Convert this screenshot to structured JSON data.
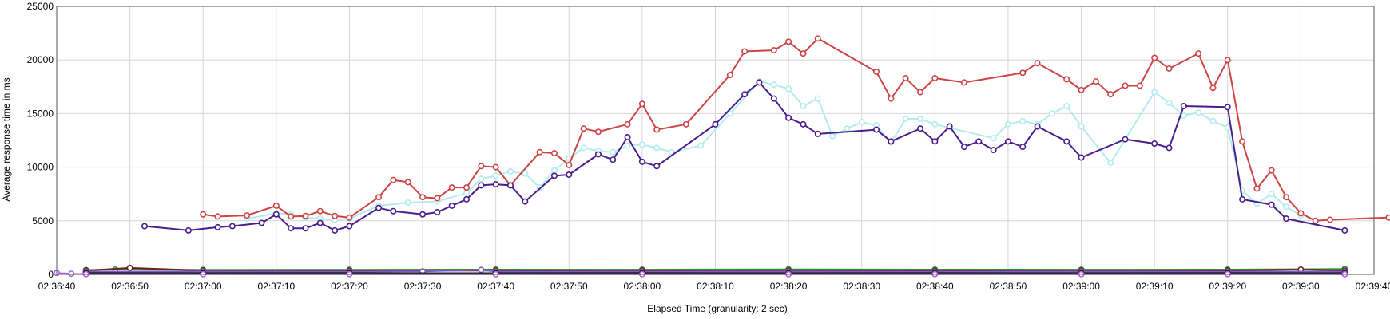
{
  "chart_data": {
    "type": "line",
    "xlabel": "Elapsed Time (granularity: 2 sec)",
    "ylabel": "Average response time in ms",
    "xlim": [
      "02:36:40",
      "02:39:40"
    ],
    "ylim": [
      0,
      25000
    ],
    "x_ticks": [
      "02:36:40",
      "02:36:50",
      "02:37:00",
      "02:37:10",
      "02:37:20",
      "02:37:30",
      "02:37:40",
      "02:37:50",
      "02:38:00",
      "02:38:10",
      "02:38:20",
      "02:38:30",
      "02:38:40",
      "02:38:50",
      "02:39:00",
      "02:39:10",
      "02:39:20",
      "02:39:30",
      "02:39:40"
    ],
    "y_ticks": [
      0,
      5000,
      10000,
      15000,
      20000,
      25000
    ],
    "grid": true,
    "series": [
      {
        "color": "#cc4444",
        "points": [
          [
            "02:37:00",
            5600
          ],
          [
            "02:37:02",
            5400
          ],
          [
            "02:37:06",
            5500
          ],
          [
            "02:37:10",
            6400
          ],
          [
            "02:37:12",
            5400
          ],
          [
            "02:37:14",
            5450
          ],
          [
            "02:37:16",
            5900
          ],
          [
            "02:37:18",
            5450
          ],
          [
            "02:37:20",
            5300
          ],
          [
            "02:37:24",
            7200
          ],
          [
            "02:37:26",
            8800
          ],
          [
            "02:37:28",
            8600
          ],
          [
            "02:37:30",
            7200
          ],
          [
            "02:37:32",
            7100
          ],
          [
            "02:37:34",
            8100
          ],
          [
            "02:37:36",
            8100
          ],
          [
            "02:37:38",
            10100
          ],
          [
            "02:37:40",
            10000
          ],
          [
            "02:37:42",
            8300
          ],
          [
            "02:37:46",
            11400
          ],
          [
            "02:37:48",
            11300
          ],
          [
            "02:37:50",
            10200
          ],
          [
            "02:37:52",
            13600
          ],
          [
            "02:37:54",
            13300
          ],
          [
            "02:37:58",
            14000
          ],
          [
            "02:38:00",
            15900
          ],
          [
            "02:38:02",
            13500
          ],
          [
            "02:38:06",
            14000
          ],
          [
            "02:38:12",
            18600
          ],
          [
            "02:38:14",
            20800
          ],
          [
            "02:38:18",
            20900
          ],
          [
            "02:38:20",
            21700
          ],
          [
            "02:38:22",
            20600
          ],
          [
            "02:38:24",
            22000
          ],
          [
            "02:38:32",
            18900
          ],
          [
            "02:38:34",
            16400
          ],
          [
            "02:38:36",
            18300
          ],
          [
            "02:38:38",
            17000
          ],
          [
            "02:38:40",
            18300
          ],
          [
            "02:38:44",
            17900
          ],
          [
            "02:38:52",
            18800
          ],
          [
            "02:38:54",
            19700
          ],
          [
            "02:38:58",
            18200
          ],
          [
            "02:39:00",
            17200
          ],
          [
            "02:39:02",
            18000
          ],
          [
            "02:39:04",
            16800
          ],
          [
            "02:39:06",
            17600
          ],
          [
            "02:39:08",
            17600
          ],
          [
            "02:39:10",
            20200
          ],
          [
            "02:39:12",
            19200
          ],
          [
            "02:39:16",
            20600
          ],
          [
            "02:39:18",
            17400
          ],
          [
            "02:39:20",
            20000
          ],
          [
            "02:39:22",
            12400
          ],
          [
            "02:39:24",
            8000
          ],
          [
            "02:39:26",
            9700
          ],
          [
            "02:39:28",
            7200
          ],
          [
            "02:39:30",
            5700
          ],
          [
            "02:39:32",
            5000
          ],
          [
            "02:39:34",
            5100
          ],
          [
            "02:39:42",
            5300
          ]
        ]
      },
      {
        "color": "#b3ecee",
        "points": [
          [
            "02:37:06",
            5200
          ],
          [
            "02:37:10",
            5700
          ],
          [
            "02:37:12",
            5600
          ],
          [
            "02:37:14",
            5300
          ],
          [
            "02:37:16",
            5200
          ],
          [
            "02:37:18",
            5100
          ],
          [
            "02:37:20",
            5200
          ],
          [
            "02:37:24",
            6400
          ],
          [
            "02:37:28",
            6700
          ],
          [
            "02:37:32",
            6800
          ],
          [
            "02:37:36",
            7600
          ],
          [
            "02:37:38",
            8900
          ],
          [
            "02:37:40",
            9200
          ],
          [
            "02:37:42",
            9600
          ],
          [
            "02:37:44",
            9400
          ],
          [
            "02:37:46",
            8100
          ],
          [
            "02:37:48",
            9700
          ],
          [
            "02:37:50",
            10800
          ],
          [
            "02:37:52",
            11800
          ],
          [
            "02:37:54",
            11500
          ],
          [
            "02:37:56",
            11400
          ],
          [
            "02:37:58",
            12000
          ],
          [
            "02:38:00",
            12100
          ],
          [
            "02:38:02",
            11800
          ],
          [
            "02:38:04",
            11400
          ],
          [
            "02:38:08",
            12000
          ],
          [
            "02:38:12",
            15000
          ],
          [
            "02:38:16",
            18000
          ],
          [
            "02:38:18",
            17700
          ],
          [
            "02:38:20",
            17300
          ],
          [
            "02:38:22",
            15700
          ],
          [
            "02:38:24",
            16400
          ],
          [
            "02:38:26",
            12900
          ],
          [
            "02:38:28",
            13600
          ],
          [
            "02:38:30",
            14200
          ],
          [
            "02:38:32",
            13900
          ],
          [
            "02:38:34",
            12300
          ],
          [
            "02:38:36",
            14500
          ],
          [
            "02:38:38",
            14500
          ],
          [
            "02:38:40",
            14000
          ],
          [
            "02:38:48",
            12700
          ],
          [
            "02:38:50",
            14000
          ],
          [
            "02:38:52",
            14300
          ],
          [
            "02:38:54",
            14000
          ],
          [
            "02:38:56",
            15000
          ],
          [
            "02:38:58",
            15700
          ],
          [
            "02:39:00",
            13800
          ],
          [
            "02:39:04",
            10400
          ],
          [
            "02:39:10",
            17000
          ],
          [
            "02:39:12",
            16000
          ],
          [
            "02:39:14",
            14800
          ],
          [
            "02:39:16",
            15100
          ],
          [
            "02:39:18",
            14300
          ],
          [
            "02:39:20",
            13700
          ],
          [
            "02:39:22",
            7800
          ],
          [
            "02:39:24",
            6600
          ],
          [
            "02:39:26",
            7500
          ],
          [
            "02:39:28",
            6300
          ],
          [
            "02:39:30",
            5500
          ]
        ]
      },
      {
        "color": "#4b1d8c",
        "points": [
          [
            "02:36:52",
            4500
          ],
          [
            "02:36:58",
            4100
          ],
          [
            "02:37:02",
            4400
          ],
          [
            "02:37:04",
            4500
          ],
          [
            "02:37:08",
            4800
          ],
          [
            "02:37:10",
            5600
          ],
          [
            "02:37:12",
            4300
          ],
          [
            "02:37:14",
            4300
          ],
          [
            "02:37:16",
            4800
          ],
          [
            "02:37:18",
            4100
          ],
          [
            "02:37:20",
            4500
          ],
          [
            "02:37:24",
            6200
          ],
          [
            "02:37:26",
            5900
          ],
          [
            "02:37:30",
            5600
          ],
          [
            "02:37:32",
            5800
          ],
          [
            "02:37:34",
            6400
          ],
          [
            "02:37:36",
            7000
          ],
          [
            "02:37:38",
            8300
          ],
          [
            "02:37:40",
            8400
          ],
          [
            "02:37:42",
            8300
          ],
          [
            "02:37:44",
            6800
          ],
          [
            "02:37:48",
            9200
          ],
          [
            "02:37:50",
            9300
          ],
          [
            "02:37:54",
            11200
          ],
          [
            "02:37:56",
            10700
          ],
          [
            "02:37:58",
            12800
          ],
          [
            "02:38:00",
            10500
          ],
          [
            "02:38:02",
            10100
          ],
          [
            "02:38:10",
            14000
          ],
          [
            "02:38:14",
            16800
          ],
          [
            "02:38:16",
            17900
          ],
          [
            "02:38:18",
            16400
          ],
          [
            "02:38:20",
            14600
          ],
          [
            "02:38:22",
            14000
          ],
          [
            "02:38:24",
            13100
          ],
          [
            "02:38:32",
            13500
          ],
          [
            "02:38:34",
            12400
          ],
          [
            "02:38:38",
            13600
          ],
          [
            "02:38:40",
            12400
          ],
          [
            "02:38:42",
            13800
          ],
          [
            "02:38:44",
            11900
          ],
          [
            "02:38:46",
            12400
          ],
          [
            "02:38:48",
            11600
          ],
          [
            "02:38:50",
            12400
          ],
          [
            "02:38:52",
            11900
          ],
          [
            "02:38:54",
            13800
          ],
          [
            "02:38:58",
            12400
          ],
          [
            "02:39:00",
            10900
          ],
          [
            "02:39:06",
            12600
          ],
          [
            "02:39:10",
            12200
          ],
          [
            "02:39:12",
            11800
          ],
          [
            "02:39:14",
            15700
          ],
          [
            "02:39:20",
            15600
          ],
          [
            "02:39:22",
            7000
          ],
          [
            "02:39:26",
            6500
          ],
          [
            "02:39:28",
            5200
          ],
          [
            "02:39:36",
            4100
          ]
        ]
      },
      {
        "color": "#2e8b2e",
        "points": [
          [
            "02:36:44",
            400
          ],
          [
            "02:36:48",
            450
          ],
          [
            "02:37:00",
            420
          ],
          [
            "02:37:20",
            430
          ],
          [
            "02:37:40",
            450
          ],
          [
            "02:38:00",
            440
          ],
          [
            "02:38:20",
            470
          ],
          [
            "02:38:40",
            450
          ],
          [
            "02:39:00",
            440
          ],
          [
            "02:39:20",
            450
          ],
          [
            "02:39:36",
            500
          ]
        ]
      },
      {
        "color": "#6b2020",
        "points": [
          [
            "02:36:44",
            350
          ],
          [
            "02:36:50",
            600
          ],
          [
            "02:37:00",
            350
          ],
          [
            "02:37:20",
            340
          ],
          [
            "02:37:40",
            350
          ],
          [
            "02:38:00",
            360
          ],
          [
            "02:38:20",
            350
          ],
          [
            "02:38:40",
            340
          ],
          [
            "02:39:00",
            360
          ],
          [
            "02:39:20",
            350
          ],
          [
            "02:39:30",
            450
          ],
          [
            "02:39:36",
            350
          ]
        ]
      },
      {
        "color": "#7b5cc7",
        "points": [
          [
            "02:36:44",
            250
          ],
          [
            "02:37:00",
            260
          ],
          [
            "02:37:20",
            250
          ],
          [
            "02:37:30",
            280
          ],
          [
            "02:37:38",
            420
          ],
          [
            "02:37:40",
            260
          ],
          [
            "02:38:00",
            250
          ],
          [
            "02:38:20",
            260
          ],
          [
            "02:38:40",
            250
          ],
          [
            "02:39:00",
            260
          ],
          [
            "02:39:20",
            250
          ],
          [
            "02:39:36",
            250
          ]
        ]
      },
      {
        "color": "#111111",
        "points": [
          [
            "02:36:44",
            120
          ],
          [
            "02:37:00",
            110
          ],
          [
            "02:37:20",
            120
          ],
          [
            "02:37:40",
            115
          ],
          [
            "02:38:00",
            120
          ],
          [
            "02:38:20",
            110
          ],
          [
            "02:38:40",
            120
          ],
          [
            "02:39:00",
            115
          ],
          [
            "02:39:20",
            120
          ],
          [
            "02:39:36",
            110
          ]
        ]
      },
      {
        "color": "#b060e0",
        "points": [
          [
            "02:36:40",
            130
          ],
          [
            "02:36:42",
            60
          ],
          [
            "02:36:44",
            20
          ],
          [
            "02:37:00",
            15
          ],
          [
            "02:37:20",
            20
          ],
          [
            "02:37:40",
            15
          ],
          [
            "02:38:00",
            20
          ],
          [
            "02:38:20",
            15
          ],
          [
            "02:38:40",
            20
          ],
          [
            "02:39:00",
            15
          ],
          [
            "02:39:20",
            20
          ],
          [
            "02:39:36",
            15
          ]
        ]
      }
    ]
  }
}
